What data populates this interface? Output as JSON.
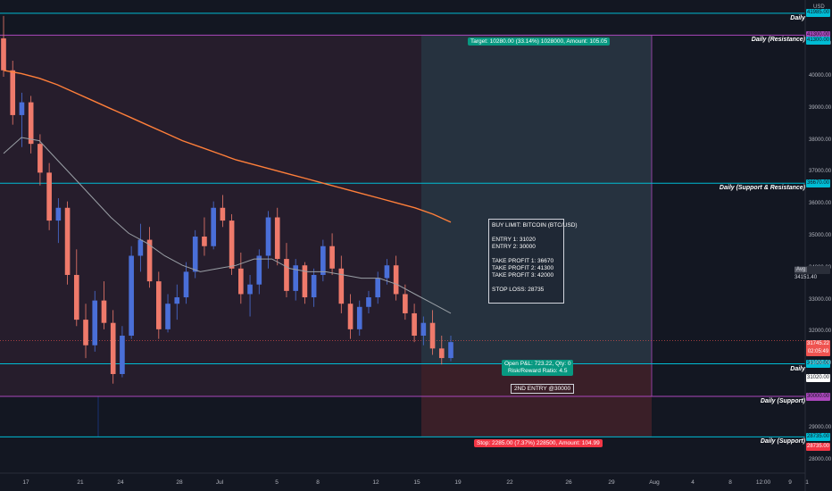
{
  "currency": "USD",
  "colors": {
    "background": "#131722",
    "level_line": "#00bcd4",
    "resistance_line": "#ab47bc",
    "candle_up": "#4a6fd8",
    "candle_down": "#ef7a6b",
    "ma_long": "#ff7f3a",
    "ma_short": "#9aa0a6",
    "target_zone": "#26323f",
    "stop_zone": "#3a1f28",
    "profit_label": "#089981",
    "loss_label": "#f23645"
  },
  "levels": [
    {
      "price": 41985,
      "name": "Daily",
      "tag": "41985.00",
      "kind": "level"
    },
    {
      "price": 41300,
      "name": "Daily (Resistance)",
      "tag": "41300.00",
      "kind": "resistance"
    },
    {
      "price": 36670,
      "name": "Daily (Support & Resistance)",
      "tag": "36670.00",
      "kind": "level"
    },
    {
      "price": 31020,
      "name": "Daily",
      "tag": "31020.00",
      "kind": "level"
    },
    {
      "price": 30000,
      "name": "Daily (Support)",
      "tag": "30000.00",
      "kind": "resistance"
    },
    {
      "price": 28735,
      "name": "Daily (Support)",
      "tag": "28735.00",
      "kind": "level"
    }
  ],
  "y_ticks": [
    "41000.00",
    "40000.00",
    "39000.00",
    "38000.00",
    "37000.00",
    "36000.00",
    "35000.00",
    "34000.00",
    "33000.00",
    "32000.00",
    "31000.00",
    "29000.00",
    "28000.00"
  ],
  "extra_tags": {
    "top_tag": "41300.00",
    "avg_label": "Avg",
    "avg_value": "34151.40",
    "last_price": "31745.22",
    "countdown": "02:05:49",
    "entry_tag": "31020.00",
    "level_28735": "28735.00"
  },
  "x_ticks": [
    "17",
    "21",
    "24",
    "28",
    "Jul",
    "5",
    "8",
    "12",
    "15",
    "19",
    "22",
    "26",
    "29",
    "Aug",
    "4",
    "8",
    "12:00",
    "9",
    "1"
  ],
  "position": {
    "target_label": "Target: 10280.00 (33.14%) 1028000, Amount: 105.05",
    "stop_label": "Stop: 2285.00 (7.37%) 228500, Amount: 104.99",
    "pnl_label": "Open P&L: 723.22, Qty: 0",
    "rr_label": "Risk/Reward Ratio: 4.5",
    "second_entry": "2ND ENTRY @30000"
  },
  "note": {
    "lines": [
      "BUY LIMIT: BITCOIN (BTC/USD)",
      "",
      "ENTRY 1: 31020",
      "ENTRY 2: 30000",
      "",
      "TAKE PROFIT 1: 36670",
      "TAKE PROFIT 2: 41300",
      "TAKE PROFIT 3: 42000",
      "",
      "STOP LOSS: 28735"
    ]
  },
  "chart_data": {
    "type": "candlestick",
    "symbol": "BTC/USD",
    "ylim": [
      27600,
      42400
    ],
    "ma_long": [
      40200,
      40100,
      39950,
      39750,
      39500,
      39250,
      39000,
      38750,
      38500,
      38250,
      38000,
      37800,
      37600,
      37400,
      37250,
      37100,
      36950,
      36800,
      36650,
      36500,
      36350,
      36200,
      36050,
      35900,
      35700,
      35450
    ],
    "ma_short": [
      37600,
      38100,
      38000,
      37400,
      36800,
      36200,
      35600,
      35100,
      34800,
      34400,
      34100,
      33900,
      34000,
      34100,
      34300,
      34300,
      34000,
      33900,
      33900,
      33800,
      33700,
      33700,
      33500,
      33200,
      32900,
      32600
    ],
    "candles": [
      [
        41200,
        41900,
        40000,
        40200
      ],
      [
        40200,
        40500,
        38500,
        38800
      ],
      [
        38800,
        39500,
        37800,
        39200
      ],
      [
        39200,
        39400,
        37600,
        37900
      ],
      [
        37900,
        38200,
        36600,
        37000
      ],
      [
        37000,
        37300,
        35200,
        35500
      ],
      [
        35500,
        36200,
        34800,
        35900
      ],
      [
        35900,
        36100,
        33500,
        33800
      ],
      [
        33800,
        34600,
        32200,
        32400
      ],
      [
        32400,
        32900,
        31200,
        31600
      ],
      [
        31600,
        33300,
        31400,
        33000
      ],
      [
        33000,
        33600,
        32100,
        32300
      ],
      [
        32300,
        32700,
        30400,
        30700
      ],
      [
        30700,
        32200,
        30600,
        31900
      ],
      [
        31900,
        34700,
        31800,
        34400
      ],
      [
        34400,
        35400,
        33900,
        34900
      ],
      [
        34900,
        35300,
        33400,
        33600
      ],
      [
        33600,
        33900,
        31800,
        32100
      ],
      [
        32100,
        33200,
        32000,
        32900
      ],
      [
        32900,
        33500,
        32400,
        33100
      ],
      [
        33100,
        34200,
        32900,
        33900
      ],
      [
        33900,
        35200,
        33700,
        35000
      ],
      [
        35000,
        35600,
        34400,
        34700
      ],
      [
        34700,
        36100,
        34600,
        35900
      ],
      [
        35900,
        36300,
        35300,
        35500
      ],
      [
        35500,
        35700,
        33800,
        34000
      ],
      [
        34000,
        34500,
        32900,
        33200
      ],
      [
        33200,
        33800,
        32500,
        33500
      ],
      [
        33500,
        34600,
        33200,
        34400
      ],
      [
        34400,
        35800,
        34000,
        35600
      ],
      [
        35600,
        35900,
        34100,
        34300
      ],
      [
        34300,
        34800,
        33100,
        33300
      ],
      [
        33300,
        34300,
        33000,
        34100
      ],
      [
        34100,
        34200,
        32900,
        33100
      ],
      [
        33100,
        34000,
        32800,
        33800
      ],
      [
        33800,
        34900,
        33600,
        34700
      ],
      [
        34700,
        35100,
        33800,
        34000
      ],
      [
        34000,
        34400,
        32600,
        32900
      ],
      [
        32900,
        33200,
        31800,
        32100
      ],
      [
        32100,
        33000,
        31900,
        32800
      ],
      [
        32800,
        33300,
        32600,
        33100
      ],
      [
        33100,
        33900,
        32900,
        33700
      ],
      [
        33700,
        34300,
        33500,
        34100
      ],
      [
        34100,
        34400,
        33000,
        33200
      ],
      [
        33200,
        33500,
        32400,
        32600
      ],
      [
        32600,
        32900,
        31700,
        31900
      ],
      [
        31900,
        32500,
        31600,
        32300
      ],
      [
        32300,
        32700,
        31300,
        31500
      ],
      [
        31500,
        31900,
        31000,
        31200
      ],
      [
        31200,
        31900,
        31100,
        31700
      ]
    ]
  }
}
